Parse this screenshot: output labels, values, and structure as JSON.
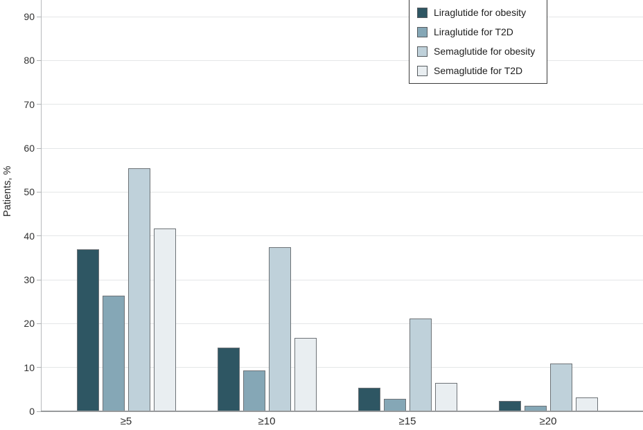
{
  "chart_data": {
    "type": "bar",
    "title": "",
    "xlabel": "",
    "ylabel": "Patients, %",
    "categories": [
      "≥5",
      "≥10",
      "≥15",
      "≥20"
    ],
    "series": [
      {
        "name": "Liraglutide for obesity",
        "color": "#2e5663",
        "values": [
          37.0,
          14.5,
          5.3,
          2.3
        ]
      },
      {
        "name": "Liraglutide for T2D",
        "color": "#85a7b6",
        "values": [
          26.4,
          9.3,
          2.8,
          1.2
        ]
      },
      {
        "name": "Semaglutide for obesity",
        "color": "#bfd1da",
        "values": [
          55.5,
          37.4,
          21.2,
          10.9
        ]
      },
      {
        "name": "Semaglutide for T2D",
        "color": "#e9eef1",
        "values": [
          41.7,
          16.7,
          6.4,
          3.2
        ]
      }
    ],
    "yticks": [
      0,
      10,
      20,
      30,
      40,
      50,
      60,
      70,
      80,
      90
    ],
    "ylim": [
      0,
      93.8
    ],
    "grid": true,
    "legend_position": "top-right"
  }
}
